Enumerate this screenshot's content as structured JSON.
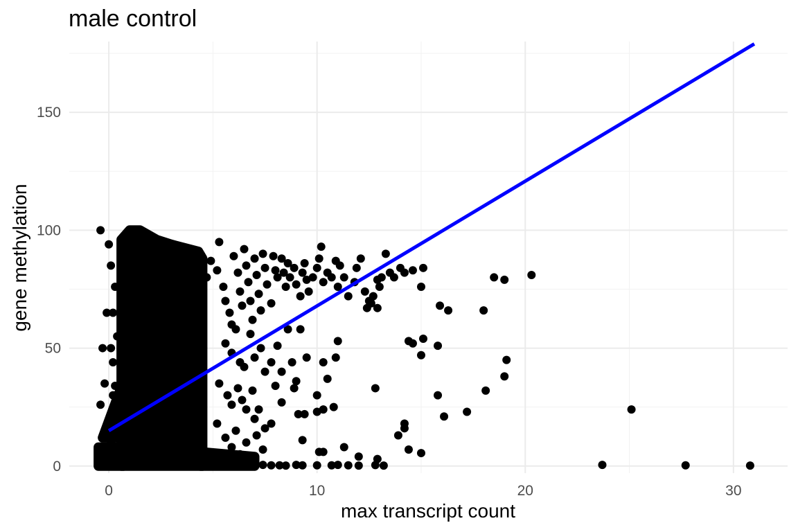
{
  "chart_data": {
    "type": "scatter",
    "title": "male control",
    "xlabel": "max transcript count",
    "ylabel": "gene methylation",
    "xlim": [
      -1.9,
      32.6
    ],
    "ylim": [
      -3,
      180
    ],
    "x_ticks": [
      0,
      10,
      20,
      30
    ],
    "y_ticks": [
      0,
      50,
      100,
      150
    ],
    "grid": true,
    "point_color": "#000000",
    "fit_line": {
      "color": "#0000ff",
      "x": [
        0,
        31
      ],
      "y": [
        15,
        179
      ]
    },
    "dense_region": {
      "x": [
        0.5,
        4.5
      ],
      "y": [
        0,
        100
      ],
      "description_density": "high"
    },
    "points": [
      [
        -0.4,
        100
      ],
      [
        -0.3,
        50
      ],
      [
        -0.2,
        35
      ],
      [
        -0.1,
        65
      ],
      [
        -0.4,
        26
      ],
      [
        0.0,
        94
      ],
      [
        0.1,
        50
      ],
      [
        0.1,
        85
      ],
      [
        0.2,
        65
      ],
      [
        0.2,
        44
      ],
      [
        0.3,
        76
      ],
      [
        0.2,
        30
      ],
      [
        0.1,
        20
      ],
      [
        0.3,
        24
      ],
      [
        0.1,
        10
      ],
      [
        0.2,
        4
      ],
      [
        0.1,
        0.5
      ],
      [
        0.3,
        2
      ],
      [
        -0.4,
        0.5
      ],
      [
        -0.3,
        8
      ],
      [
        0.3,
        34
      ],
      [
        0.4,
        55
      ],
      [
        4.7,
        80
      ],
      [
        4.9,
        87
      ],
      [
        5.2,
        83
      ],
      [
        5.3,
        95
      ],
      [
        5.5,
        76
      ],
      [
        5.6,
        70
      ],
      [
        5.8,
        65
      ],
      [
        5.9,
        60
      ],
      [
        6.0,
        89
      ],
      [
        6.2,
        82
      ],
      [
        6.3,
        74
      ],
      [
        6.4,
        68
      ],
      [
        6.5,
        92
      ],
      [
        6.6,
        85
      ],
      [
        6.7,
        78
      ],
      [
        6.8,
        70
      ],
      [
        6.9,
        62
      ],
      [
        7.0,
        88
      ],
      [
        7.1,
        81
      ],
      [
        7.2,
        73
      ],
      [
        7.3,
        66
      ],
      [
        7.4,
        90
      ],
      [
        7.5,
        84
      ],
      [
        7.6,
        77
      ],
      [
        7.8,
        69
      ],
      [
        7.9,
        89
      ],
      [
        8.0,
        83
      ],
      [
        8.1,
        80
      ],
      [
        8.3,
        88
      ],
      [
        8.4,
        82
      ],
      [
        8.5,
        76
      ],
      [
        8.6,
        86
      ],
      [
        8.7,
        80
      ],
      [
        8.9,
        84
      ],
      [
        9.0,
        77
      ],
      [
        9.2,
        72
      ],
      [
        9.3,
        82
      ],
      [
        9.4,
        86
      ],
      [
        9.5,
        79
      ],
      [
        9.6,
        74
      ],
      [
        9.8,
        80
      ],
      [
        10.0,
        84
      ],
      [
        10.1,
        88
      ],
      [
        10.2,
        93
      ],
      [
        10.3,
        78
      ],
      [
        10.5,
        82
      ],
      [
        10.7,
        80
      ],
      [
        10.9,
        87
      ],
      [
        11.0,
        76
      ],
      [
        11.1,
        85
      ],
      [
        11.3,
        80
      ],
      [
        11.5,
        72
      ],
      [
        11.8,
        78
      ],
      [
        11.9,
        84
      ],
      [
        12.1,
        88
      ],
      [
        12.3,
        74
      ],
      [
        12.5,
        70
      ],
      [
        12.7,
        72
      ],
      [
        12.9,
        79
      ],
      [
        13.1,
        80
      ],
      [
        13.3,
        90
      ],
      [
        13.5,
        82
      ],
      [
        13.7,
        80
      ],
      [
        14.0,
        84
      ],
      [
        14.2,
        82
      ],
      [
        14.6,
        83
      ],
      [
        15.0,
        76
      ],
      [
        15.1,
        84
      ],
      [
        15.9,
        68
      ],
      [
        16.3,
        66
      ],
      [
        18.0,
        66
      ],
      [
        18.5,
        80
      ],
      [
        19.0,
        79
      ],
      [
        20.3,
        81
      ],
      [
        5.6,
        52
      ],
      [
        5.9,
        48
      ],
      [
        6.1,
        58
      ],
      [
        6.3,
        44
      ],
      [
        6.5,
        42
      ],
      [
        6.8,
        56
      ],
      [
        7.0,
        46
      ],
      [
        7.3,
        50
      ],
      [
        7.5,
        40
      ],
      [
        7.8,
        44
      ],
      [
        8.1,
        51
      ],
      [
        8.3,
        40
      ],
      [
        8.6,
        58
      ],
      [
        8.8,
        44
      ],
      [
        9.0,
        36
      ],
      [
        9.2,
        58
      ],
      [
        9.5,
        46
      ],
      [
        10.0,
        30
      ],
      [
        10.3,
        44
      ],
      [
        10.5,
        37
      ],
      [
        10.9,
        46
      ],
      [
        11.0,
        53
      ],
      [
        13.0,
        76
      ],
      [
        12.9,
        67
      ],
      [
        12.4,
        67
      ],
      [
        12.6,
        69
      ],
      [
        14.4,
        53
      ],
      [
        14.6,
        52
      ],
      [
        15.1,
        54
      ],
      [
        15.8,
        51
      ],
      [
        15.0,
        47
      ],
      [
        19.1,
        45
      ],
      [
        19.0,
        38
      ],
      [
        12.8,
        33
      ],
      [
        15.8,
        30
      ],
      [
        18.1,
        32
      ],
      [
        17.2,
        23
      ],
      [
        16.1,
        21
      ],
      [
        25.1,
        24
      ],
      [
        5.3,
        35
      ],
      [
        5.7,
        30
      ],
      [
        5.9,
        26
      ],
      [
        6.2,
        33
      ],
      [
        6.4,
        28
      ],
      [
        6.6,
        24
      ],
      [
        6.9,
        32
      ],
      [
        7.0,
        20
      ],
      [
        7.2,
        24
      ],
      [
        7.5,
        16
      ],
      [
        7.8,
        18
      ],
      [
        8.0,
        34
      ],
      [
        8.3,
        27
      ],
      [
        8.9,
        33
      ],
      [
        9.1,
        22
      ],
      [
        9.4,
        22
      ],
      [
        10.0,
        23
      ],
      [
        10.3,
        24
      ],
      [
        10.8,
        25
      ],
      [
        9.3,
        11
      ],
      [
        10.1,
        6
      ],
      [
        10.3,
        6
      ],
      [
        11.3,
        8
      ],
      [
        12.0,
        4
      ],
      [
        12.9,
        3
      ],
      [
        13.9,
        13
      ],
      [
        14.2,
        16
      ],
      [
        14.2,
        18
      ],
      [
        14.4,
        7
      ],
      [
        15.0,
        5.5
      ],
      [
        5.2,
        18
      ],
      [
        5.6,
        12
      ],
      [
        5.9,
        8
      ],
      [
        6.1,
        15
      ],
      [
        6.3,
        5
      ],
      [
        6.6,
        10
      ],
      [
        6.8,
        3
      ],
      [
        7.1,
        13
      ],
      [
        7.4,
        7
      ],
      [
        7.0,
        1
      ],
      [
        7.4,
        0.5
      ],
      [
        7.8,
        0.3
      ],
      [
        8.2,
        0.3
      ],
      [
        8.5,
        0.2
      ],
      [
        9.0,
        0.5
      ],
      [
        9.3,
        0.3
      ],
      [
        10.0,
        0.3
      ],
      [
        10.7,
        0.3
      ],
      [
        11.0,
        0.5
      ],
      [
        11.5,
        0.3
      ],
      [
        12.0,
        0.2
      ],
      [
        12.8,
        0.4
      ],
      [
        13.2,
        0.2
      ],
      [
        23.7,
        0.5
      ],
      [
        27.7,
        0.3
      ],
      [
        30.8,
        0.2
      ]
    ]
  }
}
